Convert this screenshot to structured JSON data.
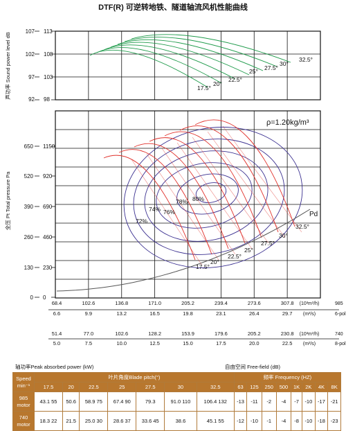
{
  "title": "DTF(R) 可逆转地铁、隧道轴流风机性能曲线",
  "density_label": "ρ=1.20kg/m³",
  "sound_axis_label": "声功率 Sound power level dB",
  "pressure_axis_label": "全压 Pt Total pressure Pa",
  "pd_label": "Pd",
  "absorbed_power_label": "轴功率Peak absorbed power (kW)",
  "free_field_label": "自由空间      Free-field    (dB)",
  "colors": {
    "red": "#e0302a",
    "blue": "#3b3090",
    "green": "#1e9a4a",
    "gray": "#555555",
    "table_header": "#b8772e"
  },
  "chart_data": [
    {
      "type": "line",
      "name": "sound_power",
      "y_ticks_left": [
        "107",
        "102",
        "97",
        "92"
      ],
      "y_ticks_right": [
        "113",
        "108",
        "103",
        "98"
      ],
      "blade_angle_labels": [
        "17.5°",
        "20°",
        "22.5°",
        "25°",
        "27.5°",
        "30°",
        "32.5°"
      ]
    },
    {
      "type": "line",
      "name": "pressure_flow",
      "y_ticks_left": [
        "650",
        "520",
        "390",
        "260",
        "130",
        "0"
      ],
      "y_ticks_right": [
        "1150",
        "920",
        "690",
        "460",
        "230",
        "0"
      ],
      "blade_angle_labels": [
        "17.5°",
        "20°",
        "22.5°",
        "25°",
        "27.5°",
        "30°",
        "32.5°"
      ],
      "efficiency_labels": [
        "72%",
        "74%",
        "76%",
        "78%",
        "80%"
      ],
      "x_axes": [
        {
          "ticks": [
            "68.4",
            "102.6",
            "136.8",
            "171.0",
            "205.2",
            "239.4",
            "273.6",
            "307.8"
          ],
          "unit": "(10³m³/h)",
          "speed": "985"
        },
        {
          "ticks": [
            "6.6",
            "9.9",
            "13.2",
            "16.5",
            "19.8",
            "23.1",
            "26.4",
            "29.7"
          ],
          "unit": "(m³/s)",
          "speed": "6-pole"
        },
        {
          "ticks": [
            "51.4",
            "77.0",
            "102.6",
            "128.2",
            "153.9",
            "179.6",
            "205.2",
            "230.8"
          ],
          "unit": "(10³m³/h)",
          "speed": "740"
        },
        {
          "ticks": [
            "5.0",
            "7.5",
            "10.0",
            "12.5",
            "15.0",
            "17.5",
            "20.0",
            "22.5"
          ],
          "unit": "(m³/s)",
          "speed": "8-pole"
        }
      ]
    }
  ],
  "table": {
    "speed_header": "Speed min⁻¹",
    "blade_header": "叶片角度Blade pitch(°)",
    "freq_header": "频率    Frequency  (HZ)",
    "angles": [
      "17.5",
      "20",
      "22.5",
      "25",
      "27.5",
      "30",
      "32.5"
    ],
    "freqs": [
      "63",
      "125",
      "250",
      "500",
      "1K",
      "2K",
      "4K",
      "8K"
    ],
    "rows": [
      {
        "speed": "985 motor",
        "power": [
          "43.1 55",
          "50.6",
          "58.9 75",
          "67.4 90",
          "79.3",
          "91.0 110",
          "106.4 132"
        ],
        "sound": [
          "-13",
          "-11",
          "-2",
          "-4",
          "-7",
          "-10",
          "-17",
          "-21"
        ]
      },
      {
        "speed": "740 motor",
        "power": [
          "18.3 22",
          "21.5",
          "25.0 30",
          "28.6 37",
          "33.6 45",
          "38.6",
          "45.1 55"
        ],
        "sound": [
          "-12",
          "-10",
          "-1",
          "-4",
          "-8",
          "-10",
          "-18",
          "-23"
        ]
      }
    ]
  }
}
